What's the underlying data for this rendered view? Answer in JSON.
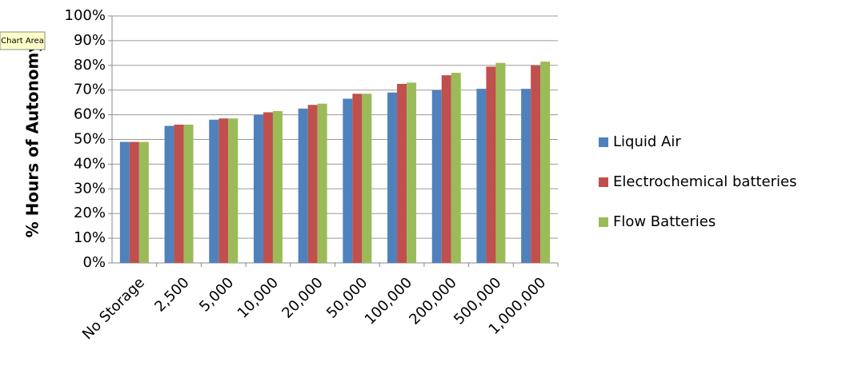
{
  "tooltip": "Chart Area",
  "chart_data": {
    "type": "bar",
    "y_label": "% Hours of Autonomy",
    "categories": [
      "No Storage",
      "2,500",
      "5,000",
      "10,000",
      "20,000",
      "50,000",
      "100,000",
      "200,000",
      "500,000",
      "1,000,000"
    ],
    "series": [
      {
        "name": "Liquid Air",
        "color": "#4f81bd",
        "values": [
          49,
          55.5,
          58,
          60,
          62.5,
          66.5,
          69,
          70,
          70.5,
          70.5
        ]
      },
      {
        "name": "Electrochemical batteries",
        "color": "#c0504d",
        "values": [
          49,
          56,
          58.5,
          61,
          64,
          68.5,
          72.5,
          76,
          79.5,
          80
        ]
      },
      {
        "name": "Flow Batteries",
        "color": "#9bbb59",
        "values": [
          49,
          56,
          58.5,
          61.5,
          64.5,
          68.5,
          73,
          77,
          81,
          81.5
        ]
      }
    ],
    "ylim": [
      0,
      100
    ],
    "yticks": [
      {
        "value": 0,
        "label": "0%"
      },
      {
        "value": 10,
        "label": "10%"
      },
      {
        "value": 20,
        "label": "20%"
      },
      {
        "value": 30,
        "label": "30%"
      },
      {
        "value": 40,
        "label": "40%"
      },
      {
        "value": 50,
        "label": "50%"
      },
      {
        "value": 60,
        "label": "60%"
      },
      {
        "value": 70,
        "label": "70%"
      },
      {
        "value": 80,
        "label": "80%"
      },
      {
        "value": 90,
        "label": "90%"
      },
      {
        "value": 100,
        "label": "100%"
      }
    ],
    "grid": true,
    "legend": "right"
  }
}
